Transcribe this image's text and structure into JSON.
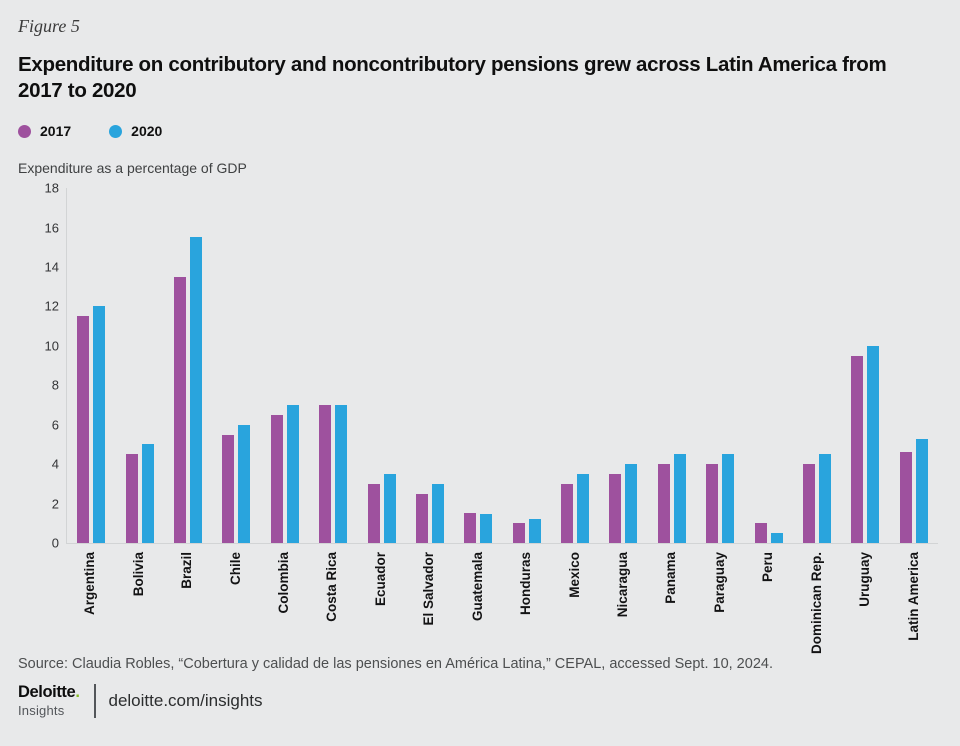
{
  "figure_label": "Figure 5",
  "title": "Expenditure on contributory and noncontributory pensions grew across Latin America from\n2017 to 2020",
  "legend": [
    {
      "label": "2017",
      "color": "#9e519e"
    },
    {
      "label": "2020",
      "color": "#29a4dd"
    }
  ],
  "axis_title": "Expenditure as a percentage of GDP",
  "chart_data": {
    "type": "bar",
    "title": "Expenditure on contributory and noncontributory pensions grew across Latin America from 2017 to 2020",
    "categories": [
      "Argentina",
      "Bolivia",
      "Brazil",
      "Chile",
      "Colombia",
      "Costa Rica",
      "Ecuador",
      "El Salvador",
      "Guatemala",
      "Honduras",
      "Mexico",
      "Nicaragua",
      "Panama",
      "Paraguay",
      "Peru",
      "Dominican Rep.",
      "Uruguay",
      "Latin America"
    ],
    "series": [
      {
        "name": "2017",
        "color": "#9e519e",
        "values": [
          11.5,
          4.5,
          13.5,
          5.5,
          6.5,
          7,
          3,
          2.5,
          1.5,
          1,
          3,
          3.5,
          4,
          4,
          1,
          4,
          9.5,
          4.6
        ]
      },
      {
        "name": "2020",
        "color": "#29a4dd",
        "values": [
          12,
          5,
          15.5,
          6,
          7,
          7,
          3.5,
          3,
          1.45,
          1.2,
          3.5,
          4,
          4.5,
          4.5,
          0.5,
          4.5,
          10,
          5.3
        ]
      }
    ],
    "xlabel": "",
    "ylabel": "Expenditure as a percentage of GDP",
    "ylim": [
      0,
      18
    ],
    "yticks": [
      0,
      2,
      4,
      6,
      8,
      10,
      12,
      14,
      16,
      18
    ],
    "grid": false,
    "legend_position": "top-left",
    "x_label_rotation": 90
  },
  "source": "Source: Claudia Robles, “Cobertura y calidad de las pensiones en América Latina,” CEPAL, accessed Sept. 10, 2024.",
  "footer": {
    "brand": "Deloitte",
    "brand_dot": ".",
    "brand_sub": "Insights",
    "link": "deloitte.com/insights"
  },
  "colors": {
    "background": "#e8e9ea",
    "axis_line": "#d2d4d5",
    "green_dot": "#86bc25"
  }
}
